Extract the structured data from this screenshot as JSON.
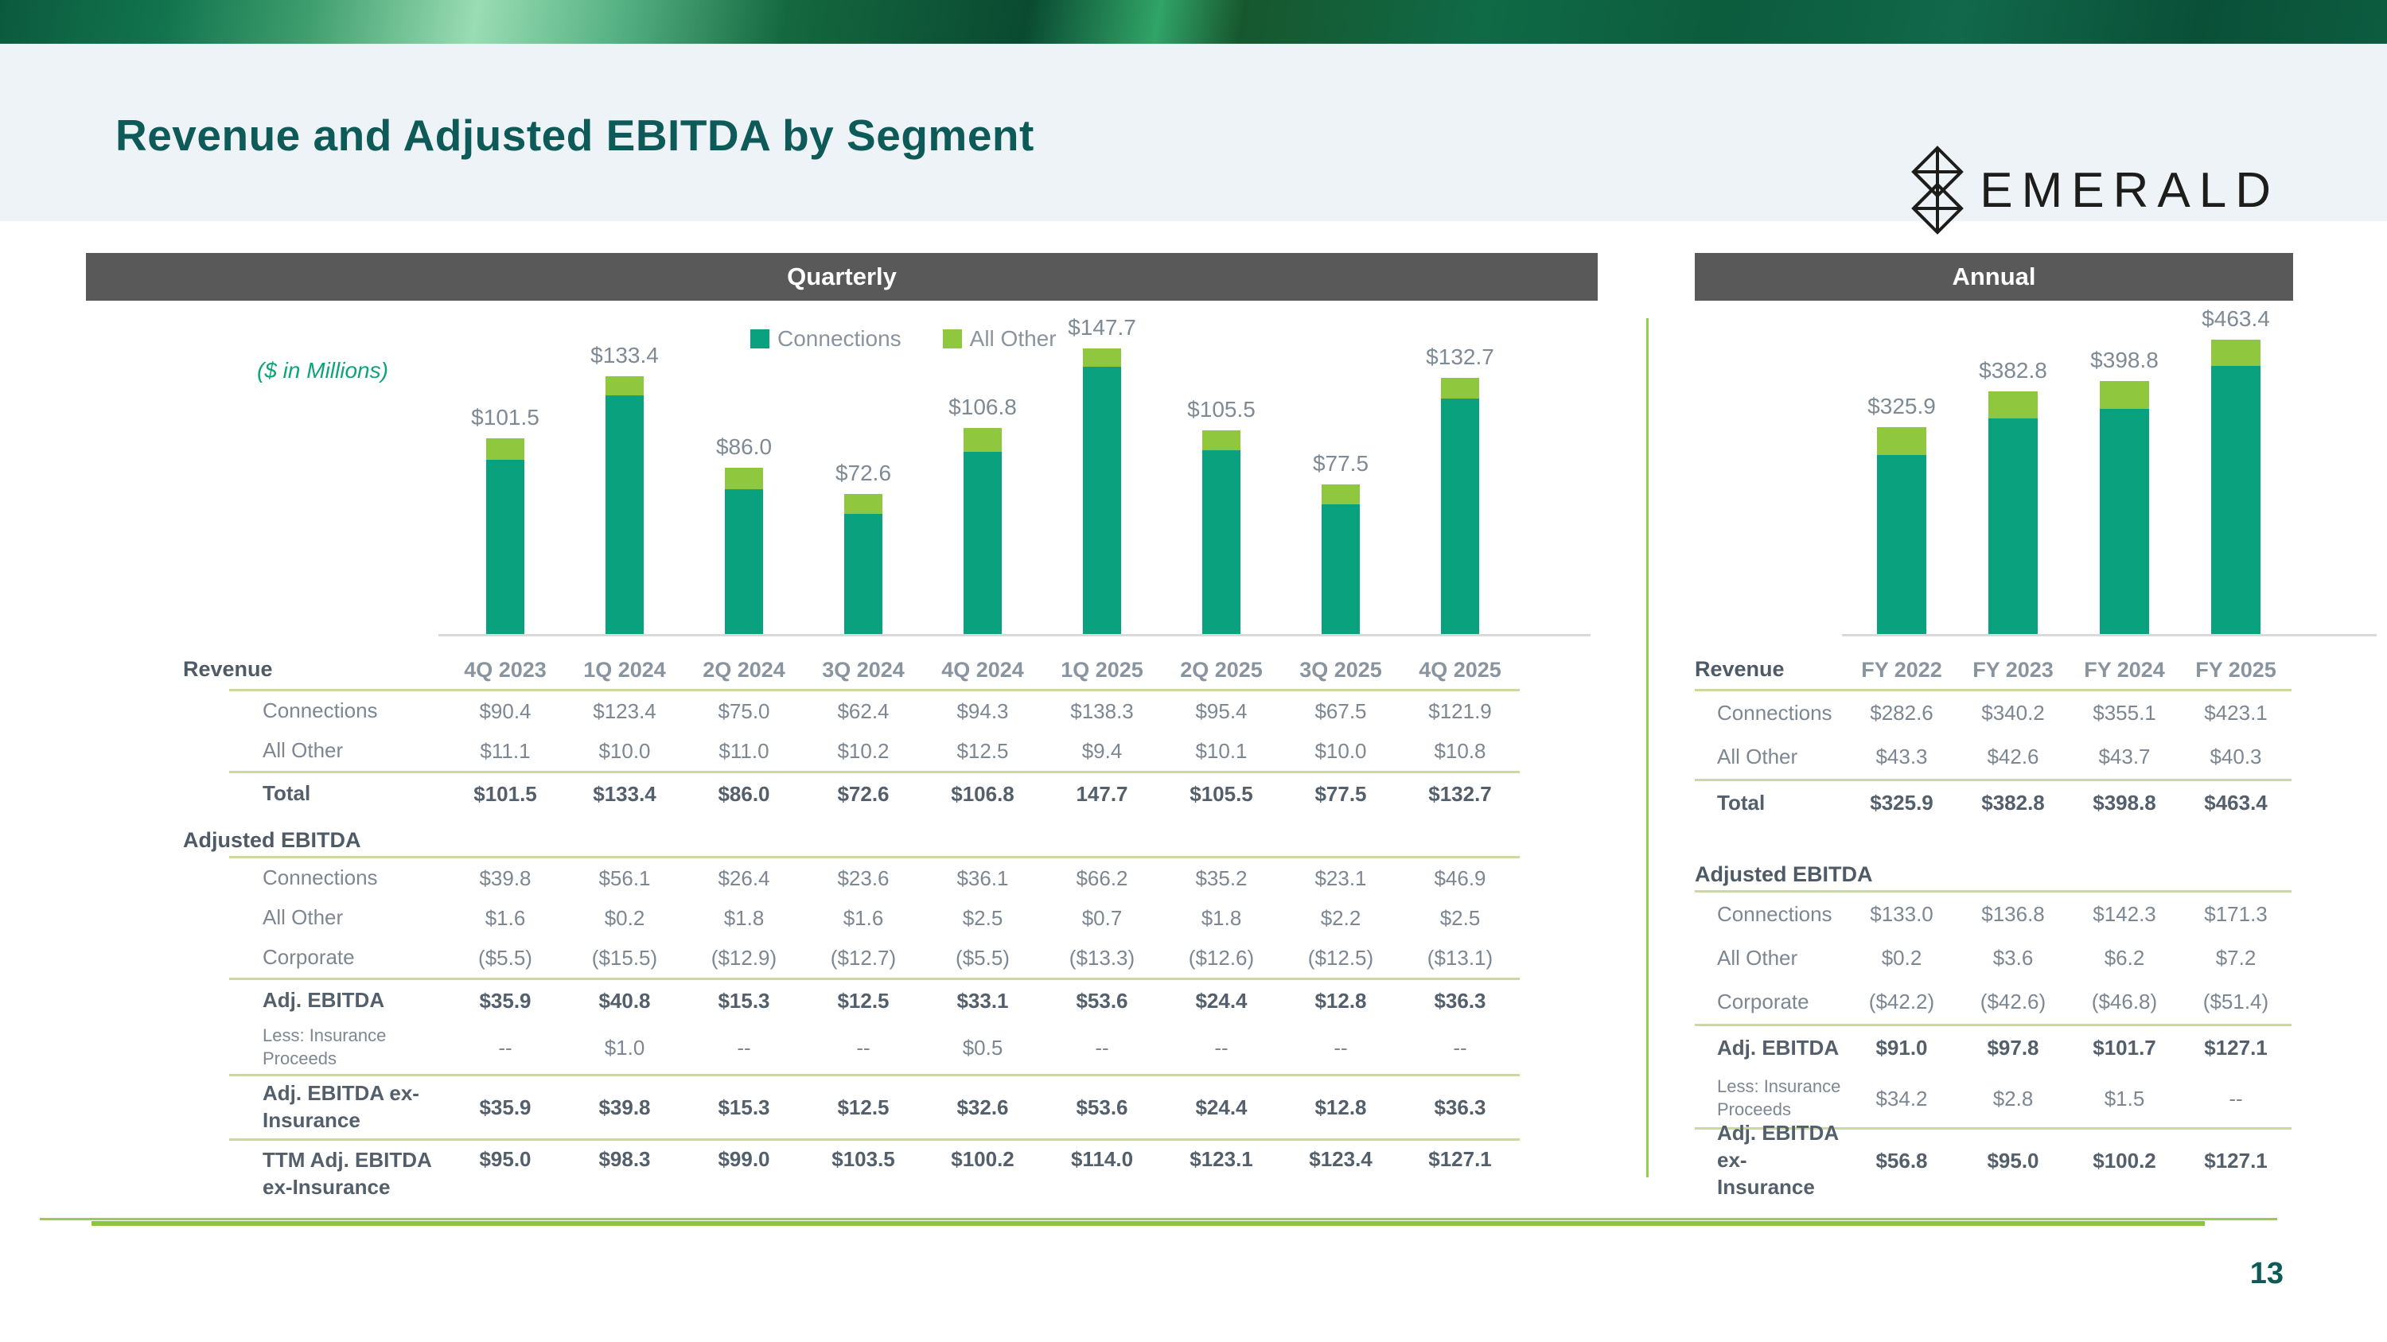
{
  "slide": {
    "title": "Revenue and Adjusted EBITDA by Segment",
    "brand": "EMERALD",
    "page_number": "13",
    "units_note": "($ in Millions)"
  },
  "colors": {
    "connections": "#0AA17E",
    "all_other": "#8FC73E",
    "header_bar": "#595959",
    "title_text": "#0E5A58",
    "table_rule": "#CBD8A2",
    "accent_line": "#92D050",
    "bar_label_text": "#7E8A94"
  },
  "chart_data": [
    {
      "type": "bar",
      "stacked": true,
      "title": "Quarterly",
      "units": "($ in Millions)",
      "grid": false,
      "legend_position": "top",
      "categories": [
        "4Q 2023",
        "1Q 2024",
        "2Q 2024",
        "3Q 2024",
        "4Q 2024",
        "1Q 2025",
        "2Q 2025",
        "3Q 2025",
        "4Q 2025"
      ],
      "series": [
        {
          "name": "Connections",
          "color": "#0AA17E",
          "values": [
            90.4,
            123.4,
            75.0,
            62.4,
            94.3,
            138.3,
            95.4,
            67.5,
            121.9
          ]
        },
        {
          "name": "All Other",
          "color": "#8FC73E",
          "values": [
            11.1,
            10.0,
            11.0,
            10.2,
            12.5,
            9.4,
            10.1,
            10.0,
            10.8
          ]
        }
      ],
      "totals_labels": [
        "$101.5",
        "$133.4",
        "$86.0",
        "$72.6",
        "$106.8",
        "$147.7",
        "$105.5",
        "$77.5",
        "$132.7"
      ],
      "ylim": [
        0,
        160
      ]
    },
    {
      "type": "bar",
      "stacked": true,
      "title": "Annual",
      "grid": false,
      "legend_position": "none",
      "categories": [
        "FY 2022",
        "FY 2023",
        "FY 2024",
        "FY 2025"
      ],
      "series": [
        {
          "name": "Connections",
          "color": "#0AA17E",
          "values": [
            282.6,
            340.2,
            355.1,
            423.1
          ]
        },
        {
          "name": "All Other",
          "color": "#8FC73E",
          "values": [
            43.3,
            42.6,
            43.7,
            40.3
          ]
        }
      ],
      "totals_labels": [
        "$325.9",
        "$382.8",
        "$398.8",
        "$463.4"
      ],
      "ylim": [
        0,
        500
      ]
    }
  ],
  "quarterly": {
    "header": "Quarterly",
    "table": {
      "rows": [
        {
          "label": "Revenue",
          "cls": "row-header",
          "indent": false,
          "rule": true,
          "values": [
            "4Q 2023",
            "1Q 2024",
            "2Q 2024",
            "3Q 2024",
            "4Q 2024",
            "1Q 2025",
            "2Q 2025",
            "3Q 2025",
            "4Q 2025"
          ]
        },
        {
          "label": "Connections",
          "cls": "row-data",
          "indent": true,
          "rule": false,
          "values": [
            "$90.4",
            "$123.4",
            "$75.0",
            "$62.4",
            "$94.3",
            "$138.3",
            "$95.4",
            "$67.5",
            "$121.9"
          ]
        },
        {
          "label": "All Other",
          "cls": "row-data",
          "indent": true,
          "rule": true,
          "values": [
            "$11.1",
            "$10.0",
            "$11.0",
            "$10.2",
            "$12.5",
            "$9.4",
            "$10.1",
            "$10.0",
            "$10.8"
          ]
        },
        {
          "label": "Total",
          "cls": "row-bold",
          "indent": true,
          "rule": false,
          "values": [
            "$101.5",
            "$133.4",
            "$86.0",
            "$72.6",
            "$106.8",
            "147.7",
            "$105.5",
            "$77.5",
            "$132.7"
          ]
        },
        {
          "label": "Adjusted EBITDA",
          "cls": "row-section",
          "indent": false,
          "rule": true,
          "values": null
        },
        {
          "label": "Connections",
          "cls": "row-data",
          "indent": true,
          "rule": false,
          "values": [
            "$39.8",
            "$56.1",
            "$26.4",
            "$23.6",
            "$36.1",
            "$66.2",
            "$35.2",
            "$23.1",
            "$46.9"
          ]
        },
        {
          "label": "All Other",
          "cls": "row-data",
          "indent": true,
          "rule": false,
          "values": [
            "$1.6",
            "$0.2",
            "$1.8",
            "$1.6",
            "$2.5",
            "$0.7",
            "$1.8",
            "$2.2",
            "$2.5"
          ]
        },
        {
          "label": "Corporate",
          "cls": "row-data",
          "indent": true,
          "rule": true,
          "values": [
            "($5.5)",
            "($15.5)",
            "($12.9)",
            "($12.7)",
            "($5.5)",
            "($13.3)",
            "($12.6)",
            "($12.5)",
            "($13.1)"
          ]
        },
        {
          "label": "Adj. EBITDA",
          "cls": "row-bold",
          "indent": true,
          "rule": false,
          "values": [
            "$35.9",
            "$40.8",
            "$15.3",
            "$12.5",
            "$33.1",
            "$53.6",
            "$24.4",
            "$12.8",
            "$36.3"
          ]
        },
        {
          "label": "Less: Insurance Proceeds",
          "cls": "row-small",
          "indent": true,
          "rule": true,
          "values": [
            "--",
            "$1.0",
            "--",
            "--",
            "$0.5",
            "--",
            "--",
            "--",
            "--"
          ]
        },
        {
          "label": "Adj. EBITDA ex-Insurance",
          "cls": "row-tall",
          "indent": true,
          "rule": true,
          "values": [
            "$35.9",
            "$39.8",
            "$15.3",
            "$12.5",
            "$32.6",
            "$53.6",
            "$24.4",
            "$12.8",
            "$36.3"
          ]
        },
        {
          "label": "TTM Adj. EBITDA ex-Insurance",
          "cls": "row-ttm",
          "indent": true,
          "rule": false,
          "values": [
            "$95.0",
            "$98.3",
            "$99.0",
            "$103.5",
            "$100.2",
            "$114.0",
            "$123.1",
            "$123.4",
            "$127.1"
          ]
        }
      ]
    }
  },
  "annual": {
    "header": "Annual",
    "table": {
      "rows": [
        {
          "label": "Revenue",
          "cls": "row-header",
          "indent": false,
          "rule": true,
          "values": [
            "FY 2022",
            "FY 2023",
            "FY 2024",
            "FY 2025"
          ]
        },
        {
          "label": "Connections",
          "cls": "row-data",
          "indent": true,
          "rule": false,
          "values": [
            "$282.6",
            "$340.2",
            "$355.1",
            "$423.1"
          ]
        },
        {
          "label": "All Other",
          "cls": "row-data",
          "indent": true,
          "rule": true,
          "values": [
            "$43.3",
            "$42.6",
            "$43.7",
            "$40.3"
          ]
        },
        {
          "label": "Total",
          "cls": "row-bold",
          "indent": true,
          "rule": false,
          "values": [
            "$325.9",
            "$382.8",
            "$398.8",
            "$463.4"
          ]
        },
        {
          "label": "",
          "cls": "row-spacer",
          "indent": false,
          "rule": false,
          "values": null
        },
        {
          "label": "Adjusted EBITDA",
          "cls": "row-section",
          "indent": false,
          "rule": true,
          "values": null
        },
        {
          "label": "Connections",
          "cls": "row-data",
          "indent": true,
          "rule": false,
          "values": [
            "$133.0",
            "$136.8",
            "$142.3",
            "$171.3"
          ]
        },
        {
          "label": "All Other",
          "cls": "row-data",
          "indent": true,
          "rule": false,
          "values": [
            "$0.2",
            "$3.6",
            "$6.2",
            "$7.2"
          ]
        },
        {
          "label": "Corporate",
          "cls": "row-data",
          "indent": true,
          "rule": true,
          "values": [
            "($42.2)",
            "($42.6)",
            "($46.8)",
            "($51.4)"
          ]
        },
        {
          "label": "Adj. EBITDA",
          "cls": "row-bold",
          "indent": true,
          "rule": false,
          "values": [
            "$91.0",
            "$97.8",
            "$101.7",
            "$127.1"
          ]
        },
        {
          "label": "Less: Insurance Proceeds",
          "cls": "row-small",
          "indent": true,
          "rule": true,
          "values": [
            "$34.2",
            "$2.8",
            "$1.5",
            "--"
          ]
        },
        {
          "label": "Adj. EBITDA ex-Insurance",
          "cls": "row-tall",
          "indent": true,
          "rule": false,
          "values": [
            "$56.8",
            "$95.0",
            "$100.2",
            "$127.1"
          ]
        }
      ]
    }
  }
}
